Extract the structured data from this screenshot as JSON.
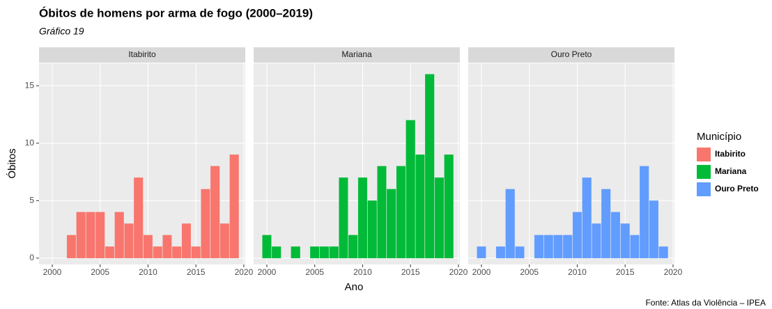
{
  "title": "Óbitos de homens por arma de fogo (2000–2019)",
  "subtitle": "Gráfico 19",
  "xlabel": "Ano",
  "ylabel": "Óbitos",
  "legend_title": "Município",
  "caption": "Fonte: Atlas da Violência – IPEA",
  "chart_data": [
    {
      "type": "bar",
      "x": [
        2000,
        2001,
        2002,
        2003,
        2004,
        2005,
        2006,
        2007,
        2008,
        2009,
        2010,
        2011,
        2012,
        2013,
        2014,
        2015,
        2016,
        2017,
        2018,
        2019
      ],
      "series": [
        {
          "name": "Itabirito",
          "color": "#f8766d",
          "values": [
            0,
            0,
            2,
            4,
            4,
            4,
            1,
            4,
            3,
            7,
            2,
            1,
            2,
            1,
            3,
            1,
            6,
            8,
            3,
            9
          ]
        }
      ],
      "xlim": [
        1998.62,
        2020.15
      ],
      "xticks": [
        2000,
        2005,
        2010,
        2015,
        2020
      ],
      "ylim": [
        -0.55,
        16.95
      ],
      "yticks": [
        0,
        5,
        10,
        15
      ],
      "grid": true
    },
    {
      "type": "bar",
      "x": [
        2000,
        2001,
        2002,
        2003,
        2004,
        2005,
        2006,
        2007,
        2008,
        2009,
        2010,
        2011,
        2012,
        2013,
        2014,
        2015,
        2016,
        2017,
        2018,
        2019
      ],
      "series": [
        {
          "name": "Mariana",
          "color": "#00ba38",
          "values": [
            2,
            1,
            0,
            1,
            0,
            1,
            1,
            1,
            7,
            2,
            7,
            5,
            8,
            6,
            8,
            12,
            9,
            16,
            7,
            9
          ]
        }
      ],
      "xlim": [
        1998.62,
        2020.15
      ],
      "xticks": [
        2000,
        2005,
        2010,
        2015,
        2020
      ],
      "ylim": [
        -0.55,
        16.95
      ],
      "yticks": [
        0,
        5,
        10,
        15
      ],
      "grid": true
    },
    {
      "type": "bar",
      "x": [
        2000,
        2001,
        2002,
        2003,
        2004,
        2005,
        2006,
        2007,
        2008,
        2009,
        2010,
        2011,
        2012,
        2013,
        2014,
        2015,
        2016,
        2017,
        2018,
        2019
      ],
      "series": [
        {
          "name": "Ouro Preto",
          "color": "#619cff",
          "values": [
            1,
            0,
            1,
            6,
            1,
            0,
            2,
            2,
            2,
            2,
            4,
            7,
            3,
            6,
            4,
            3,
            2,
            8,
            5,
            1
          ]
        }
      ],
      "xlim": [
        1998.62,
        2020.15
      ],
      "xticks": [
        2000,
        2005,
        2010,
        2015,
        2020
      ],
      "ylim": [
        -0.55,
        16.95
      ],
      "yticks": [
        0,
        5,
        10,
        15
      ],
      "grid": true
    }
  ]
}
